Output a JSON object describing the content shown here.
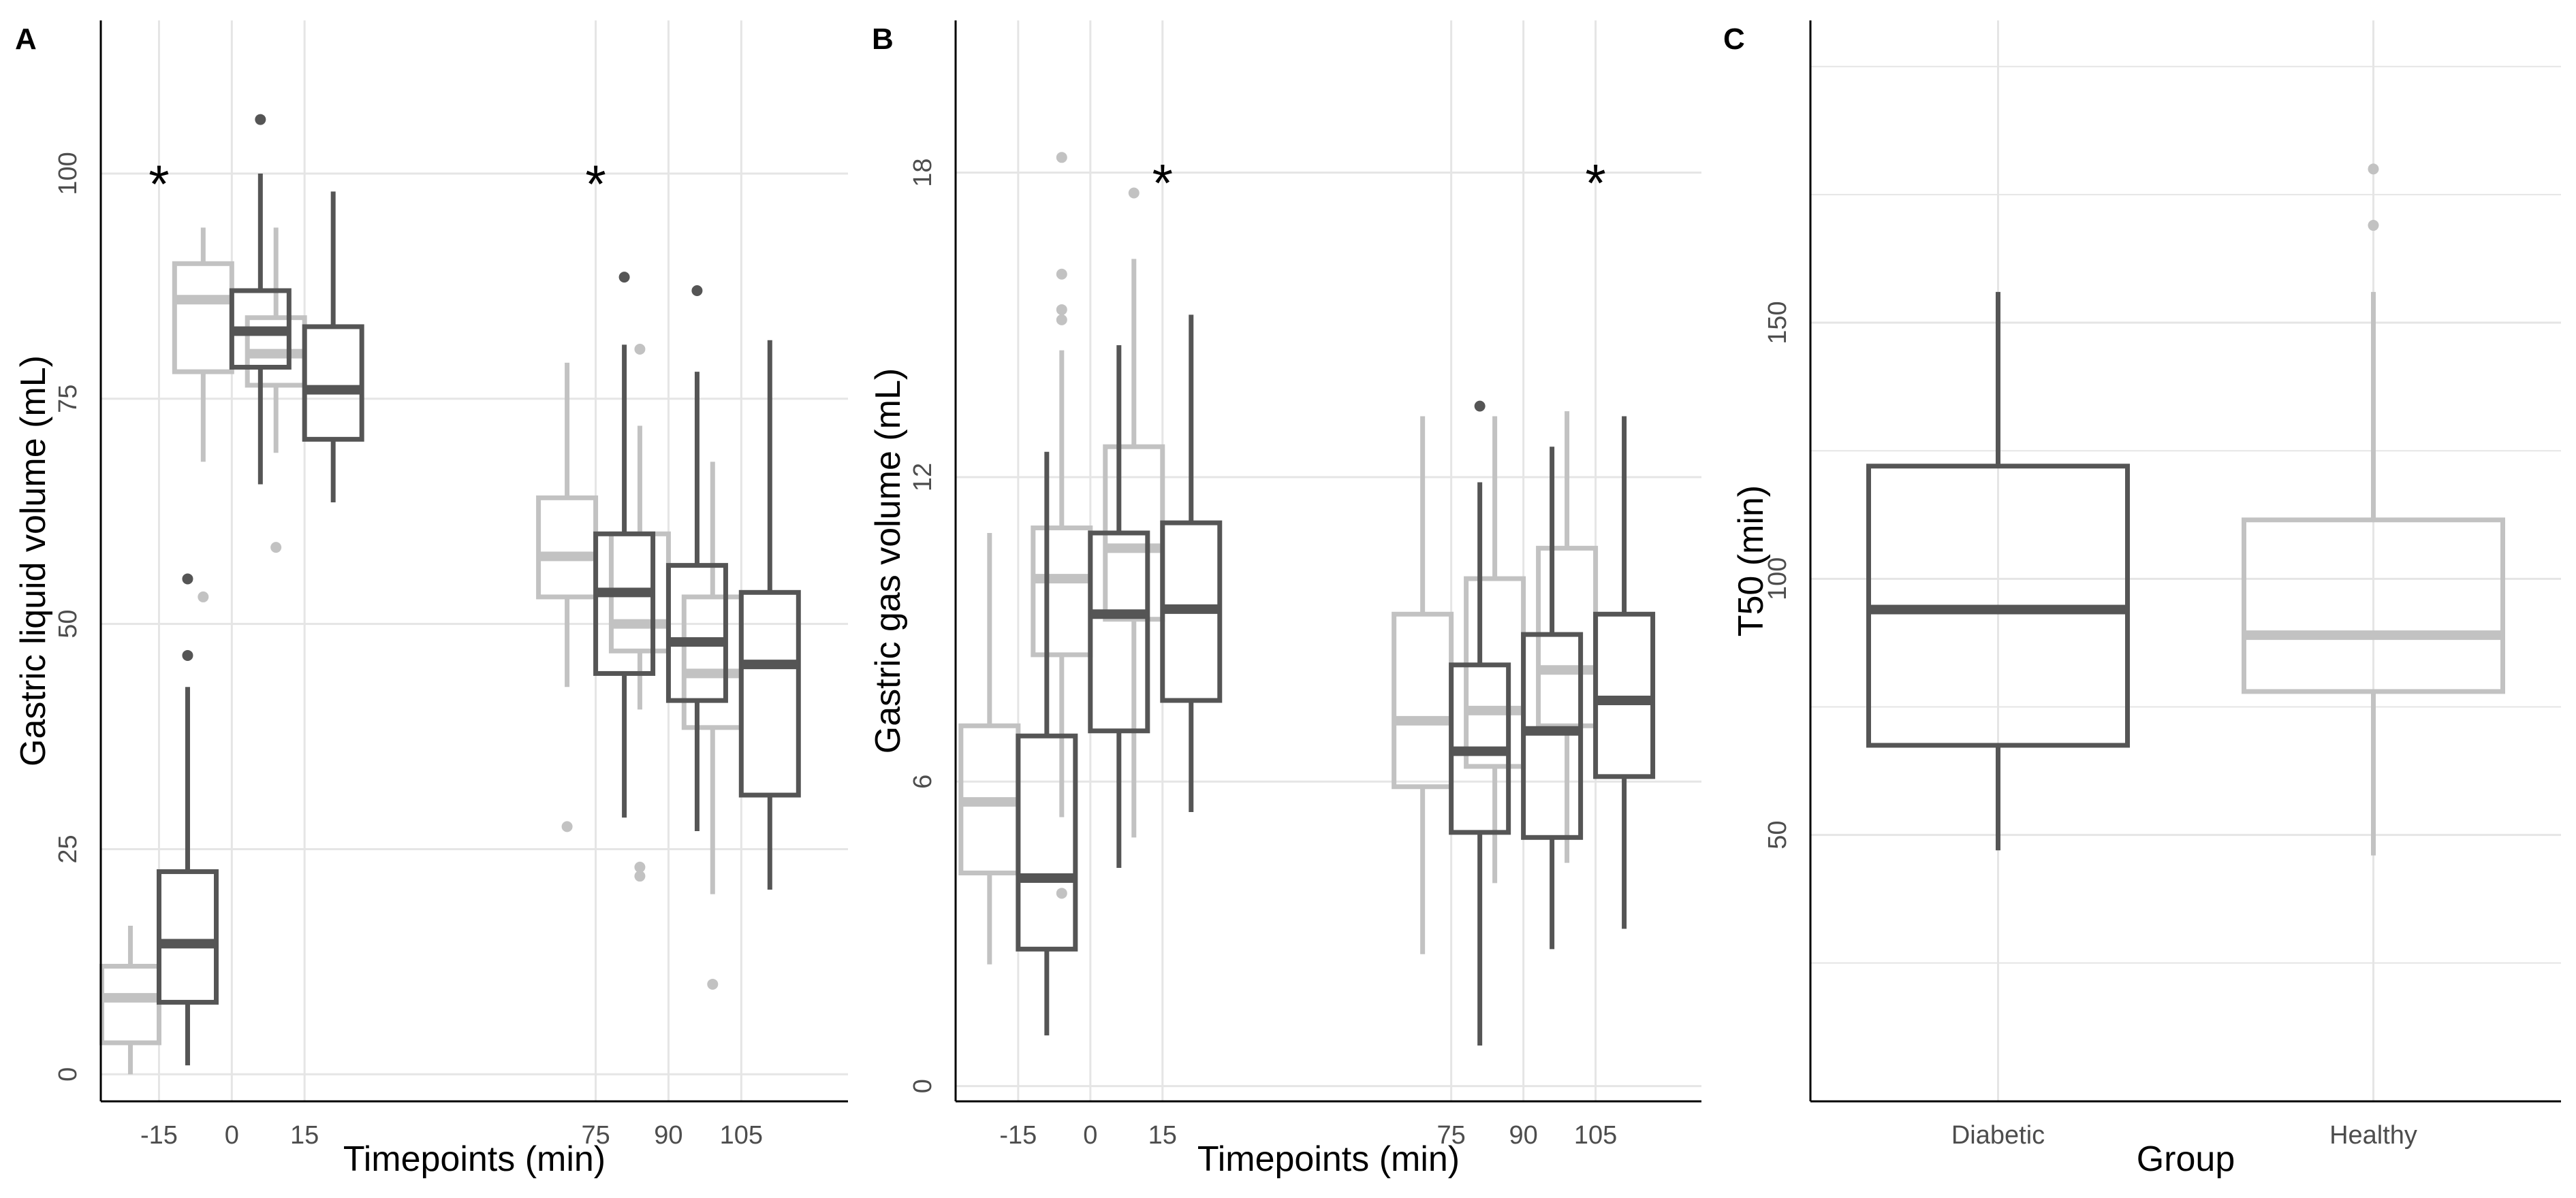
{
  "colors": {
    "diabetic": "#555555",
    "healthy": "#c2c2c2",
    "grid": "#e5e5e5",
    "axis": "#000000",
    "tick_text": "#4d4d4d"
  },
  "chart_data": [
    {
      "panel": "A",
      "type": "boxplot",
      "xlabel": "Timepoints (min)",
      "ylabel": "Gastric liquid volume (mL)",
      "ylim": [
        -3,
        117
      ],
      "yticks": [
        0,
        25,
        50,
        75,
        100
      ],
      "xlim": [
        -27,
        127
      ],
      "xticks": [
        -15,
        0,
        15,
        75,
        90,
        105
      ],
      "xtick_labels": [
        "-15",
        "0",
        "15",
        "75",
        "90",
        "105"
      ],
      "significance": [
        {
          "x": -15,
          "y": 100,
          "label": "*"
        },
        {
          "x": 75,
          "y": 100,
          "label": "*"
        }
      ],
      "series": [
        {
          "name": "Healthy",
          "boxes": [
            {
              "x": -15,
              "min": 0,
              "q1": 3.5,
              "median": 8.5,
              "q3": 12,
              "max": 16.5,
              "outliers": []
            },
            {
              "x": 0,
              "min": 68,
              "q1": 78,
              "median": 86,
              "q3": 90,
              "max": 94,
              "outliers": [
                53
              ]
            },
            {
              "x": 15,
              "min": 69,
              "q1": 76.5,
              "median": 80,
              "q3": 84,
              "max": 94,
              "outliers": [
                58.5
              ]
            },
            {
              "x": 75,
              "min": 43,
              "q1": 53,
              "median": 57.5,
              "q3": 64,
              "max": 79,
              "outliers": [
                27.5
              ]
            },
            {
              "x": 90,
              "min": 40.5,
              "q1": 47,
              "median": 50,
              "q3": 60,
              "max": 72,
              "outliers": [
                80.5,
                23,
                22
              ]
            },
            {
              "x": 105,
              "min": 20,
              "q1": 38.5,
              "median": 44.5,
              "q3": 53,
              "max": 68,
              "outliers": [
                10
              ]
            }
          ]
        },
        {
          "name": "Diabetic",
          "boxes": [
            {
              "x": -15,
              "min": 1,
              "q1": 8,
              "median": 14.5,
              "q3": 22.5,
              "max": 43,
              "outliers": [
                55,
                46.5
              ]
            },
            {
              "x": 0,
              "min": 65.5,
              "q1": 78.5,
              "median": 82.5,
              "q3": 87,
              "max": 100,
              "outliers": [
                106
              ]
            },
            {
              "x": 15,
              "min": 63.5,
              "q1": 70.5,
              "median": 76,
              "q3": 83,
              "max": 98,
              "outliers": []
            },
            {
              "x": 75,
              "min": 28.5,
              "q1": 44.5,
              "median": 53.5,
              "q3": 60,
              "max": 81,
              "outliers": [
                88.5
              ]
            },
            {
              "x": 90,
              "min": 27,
              "q1": 41.5,
              "median": 48,
              "q3": 56.5,
              "max": 78,
              "outliers": [
                87
              ]
            },
            {
              "x": 105,
              "min": 20.5,
              "q1": 31,
              "median": 45.5,
              "q3": 53.5,
              "max": 81.5,
              "outliers": []
            }
          ]
        }
      ]
    },
    {
      "panel": "B",
      "type": "boxplot",
      "xlabel": "Timepoints (min)",
      "ylabel": "Gastric gas volume (mL)",
      "ylim": [
        -0.3,
        21
      ],
      "yticks": [
        0,
        6,
        12,
        18
      ],
      "xlim": [
        -28,
        127
      ],
      "xticks": [
        -15,
        0,
        15,
        75,
        90,
        105
      ],
      "xtick_labels": [
        "-15",
        "0",
        "15",
        "75",
        "90",
        "105"
      ],
      "significance": [
        {
          "x": 15,
          "y": 18,
          "label": "*"
        },
        {
          "x": 105,
          "y": 18,
          "label": "*"
        }
      ],
      "series": [
        {
          "name": "Healthy",
          "boxes": [
            {
              "x": -15,
              "min": 2.4,
              "q1": 4.2,
              "median": 5.6,
              "q3": 7.1,
              "max": 10.9,
              "outliers": []
            },
            {
              "x": 0,
              "min": 5.3,
              "q1": 8.5,
              "median": 10.0,
              "q3": 11.0,
              "max": 14.5,
              "outliers": [
                18.3,
                16.0,
                15.3,
                15.1,
                3.8
              ]
            },
            {
              "x": 15,
              "min": 4.9,
              "q1": 9.2,
              "median": 10.6,
              "q3": 12.6,
              "max": 16.3,
              "outliers": [
                17.6
              ]
            },
            {
              "x": 75,
              "min": 2.6,
              "q1": 5.9,
              "median": 7.2,
              "q3": 9.3,
              "max": 13.2,
              "outliers": []
            },
            {
              "x": 90,
              "min": 4.0,
              "q1": 6.3,
              "median": 7.4,
              "q3": 10.0,
              "max": 13.2,
              "outliers": []
            },
            {
              "x": 105,
              "min": 4.4,
              "q1": 7.1,
              "median": 8.2,
              "q3": 10.6,
              "max": 13.3,
              "outliers": []
            }
          ]
        },
        {
          "name": "Diabetic",
          "boxes": [
            {
              "x": -15,
              "min": 1.0,
              "q1": 2.7,
              "median": 4.1,
              "q3": 6.9,
              "max": 12.5,
              "outliers": []
            },
            {
              "x": 0,
              "min": 4.3,
              "q1": 7.0,
              "median": 9.3,
              "q3": 10.9,
              "max": 14.6,
              "outliers": []
            },
            {
              "x": 15,
              "min": 5.4,
              "q1": 7.6,
              "median": 9.4,
              "q3": 11.1,
              "max": 15.2,
              "outliers": []
            },
            {
              "x": 75,
              "min": 0.8,
              "q1": 5.0,
              "median": 6.6,
              "q3": 8.3,
              "max": 11.9,
              "outliers": [
                13.4
              ]
            },
            {
              "x": 90,
              "min": 2.7,
              "q1": 4.9,
              "median": 7.0,
              "q3": 8.9,
              "max": 12.6,
              "outliers": []
            },
            {
              "x": 105,
              "min": 3.1,
              "q1": 6.1,
              "median": 7.6,
              "q3": 9.3,
              "max": 13.2,
              "outliers": []
            }
          ]
        }
      ]
    },
    {
      "panel": "C",
      "type": "boxplot",
      "xlabel": "Group",
      "ylabel": "T50 (min)",
      "ylim": [
        -2,
        209
      ],
      "yticks": [
        50,
        100,
        150
      ],
      "minor_grid": [
        25,
        75,
        125,
        175,
        200
      ],
      "categories": [
        "Diabetic",
        "Healthy"
      ],
      "boxes": [
        {
          "category": "Diabetic",
          "series": "Diabetic",
          "min": 47,
          "q1": 67.5,
          "median": 94,
          "q3": 122,
          "max": 156,
          "outliers": []
        },
        {
          "category": "Healthy",
          "series": "Healthy",
          "min": 46,
          "q1": 78,
          "median": 89,
          "q3": 111.5,
          "max": 156,
          "outliers": [
            180,
            169
          ]
        }
      ]
    }
  ]
}
